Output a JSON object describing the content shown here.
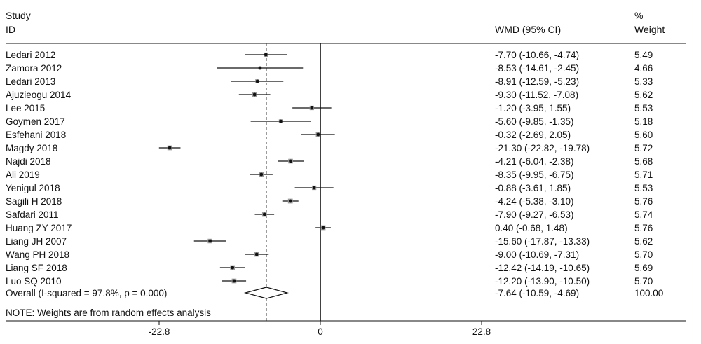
{
  "header": {
    "study_line1": "Study",
    "study_line2": "ID",
    "effect_col": "WMD (95% CI)",
    "weight_line1": "%",
    "weight_line2": "Weight"
  },
  "note": "NOTE: Weights are from random effects analysis",
  "chart_data": {
    "type": "forest",
    "null_value": 0,
    "overall_line": -7.64,
    "xticks": [
      -22.8,
      0,
      22.8
    ],
    "xtick_labels": [
      "-22.8",
      "0",
      "22.8"
    ],
    "xlim": [
      -22.8,
      22.8
    ],
    "studies": [
      {
        "id": "Ledari 2012",
        "est": -7.7,
        "lo": -10.66,
        "hi": -4.74,
        "ci": "-7.70 (-10.66, -4.74)",
        "weight": "5.49"
      },
      {
        "id": "Zamora 2012",
        "est": -8.53,
        "lo": -14.61,
        "hi": -2.45,
        "ci": "-8.53 (-14.61, -2.45)",
        "weight": "4.66"
      },
      {
        "id": "Ledari 2013",
        "est": -8.91,
        "lo": -12.59,
        "hi": -5.23,
        "ci": "-8.91 (-12.59, -5.23)",
        "weight": "5.33"
      },
      {
        "id": "Ajuzieogu  2014",
        "est": -9.3,
        "lo": -11.52,
        "hi": -7.08,
        "ci": "-9.30 (-11.52, -7.08)",
        "weight": "5.62"
      },
      {
        "id": "Lee 2015",
        "est": -1.2,
        "lo": -3.95,
        "hi": 1.55,
        "ci": "-1.20 (-3.95, 1.55)",
        "weight": "5.53"
      },
      {
        "id": "Goymen 2017",
        "est": -5.6,
        "lo": -9.85,
        "hi": -1.35,
        "ci": "-5.60 (-9.85, -1.35)",
        "weight": "5.18"
      },
      {
        "id": "Esfehani 2018",
        "est": -0.32,
        "lo": -2.69,
        "hi": 2.05,
        "ci": "-0.32 (-2.69, 2.05)",
        "weight": "5.60"
      },
      {
        "id": "Magdy 2018",
        "est": -21.3,
        "lo": -22.82,
        "hi": -19.78,
        "ci": "-21.30 (-22.82, -19.78)",
        "weight": "5.72"
      },
      {
        "id": "Najdi 2018",
        "est": -4.21,
        "lo": -6.04,
        "hi": -2.38,
        "ci": "-4.21 (-6.04, -2.38)",
        "weight": "5.68"
      },
      {
        "id": "Ali 2019",
        "est": -8.35,
        "lo": -9.95,
        "hi": -6.75,
        "ci": "-8.35 (-9.95, -6.75)",
        "weight": "5.71"
      },
      {
        "id": "Yenigul 2018",
        "est": -0.88,
        "lo": -3.61,
        "hi": 1.85,
        "ci": "-0.88 (-3.61, 1.85)",
        "weight": "5.53"
      },
      {
        "id": "Sagili H 2018",
        "est": -4.24,
        "lo": -5.38,
        "hi": -3.1,
        "ci": "-4.24 (-5.38, -3.10)",
        "weight": "5.76"
      },
      {
        "id": "Safdari 2011",
        "est": -7.9,
        "lo": -9.27,
        "hi": -6.53,
        "ci": "-7.90 (-9.27, -6.53)",
        "weight": "5.74"
      },
      {
        "id": "Huang ZY 2017",
        "est": 0.4,
        "lo": -0.68,
        "hi": 1.48,
        "ci": "0.40 (-0.68, 1.48)",
        "weight": "5.76"
      },
      {
        "id": "Liang JH 2007",
        "est": -15.6,
        "lo": -17.87,
        "hi": -13.33,
        "ci": "-15.60 (-17.87, -13.33)",
        "weight": "5.62"
      },
      {
        "id": "Wang PH 2018",
        "est": -9.0,
        "lo": -10.69,
        "hi": -7.31,
        "ci": "-9.00 (-10.69, -7.31)",
        "weight": "5.70"
      },
      {
        "id": "Liang SF 2018",
        "est": -12.42,
        "lo": -14.19,
        "hi": -10.65,
        "ci": "-12.42 (-14.19, -10.65)",
        "weight": "5.69"
      },
      {
        "id": "Luo SQ 2010",
        "est": -12.2,
        "lo": -13.9,
        "hi": -10.5,
        "ci": "-12.20 (-13.90, -10.50)",
        "weight": "5.70"
      }
    ],
    "overall": {
      "id": "Overall  (I-squared = 97.8%, p = 0.000)",
      "est": -7.64,
      "lo": -10.59,
      "hi": -4.69,
      "ci": "-7.64 (-10.59, -4.69)",
      "weight": "100.00"
    }
  }
}
